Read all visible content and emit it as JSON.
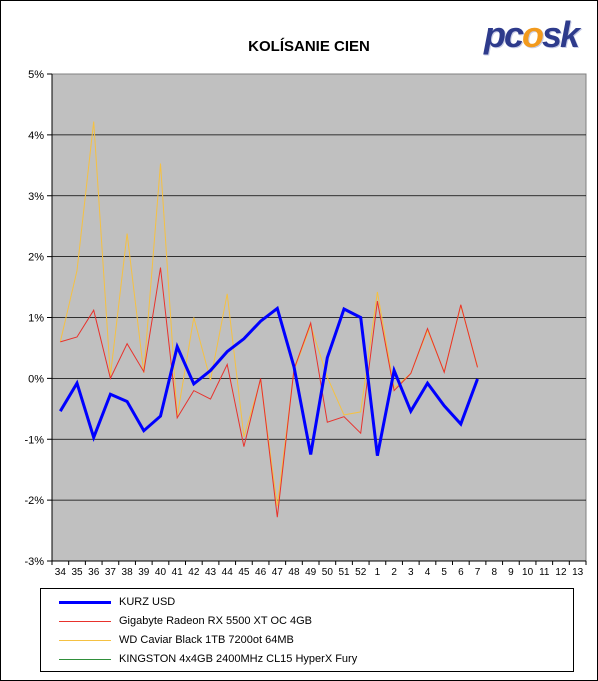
{
  "logo": {
    "text_left": "pc",
    "text_mid": "o",
    "text_right": "sk"
  },
  "chart_data": {
    "type": "line",
    "title": "KOLÍSANIE CIEN",
    "xlabel": "",
    "ylabel": "",
    "categories": [
      "34",
      "35",
      "36",
      "37",
      "38",
      "39",
      "40",
      "41",
      "42",
      "43",
      "44",
      "45",
      "46",
      "47",
      "48",
      "49",
      "50",
      "51",
      "52",
      "1",
      "2",
      "3",
      "4",
      "5",
      "6",
      "7",
      "8",
      "9",
      "10",
      "11",
      "12",
      "13"
    ],
    "y_ticks": [
      "5%",
      "4%",
      "3%",
      "2%",
      "1%",
      "0%",
      "-1%",
      "-2%",
      "-3%"
    ],
    "ylim": [
      -3,
      5
    ],
    "grid": true,
    "legend_position": "bottom",
    "series": [
      {
        "name": "KURZ USD",
        "color": "#0000ff",
        "width": 3,
        "values": [
          -0.54,
          -0.08,
          -0.97,
          -0.26,
          -0.38,
          -0.86,
          -0.62,
          0.52,
          -0.09,
          0.13,
          0.44,
          0.65,
          0.94,
          1.15,
          0.19,
          -1.25,
          0.34,
          1.14,
          1.0,
          -1.27,
          0.13,
          -0.54,
          -0.08,
          -0.45,
          -0.75,
          -0.01,
          null,
          null,
          null,
          null,
          null,
          null
        ]
      },
      {
        "name": "Gigabyte Radeon RX 5500 XT OC 4GB",
        "color": "#e8322c",
        "width": 1,
        "values": [
          0.6,
          0.68,
          1.12,
          0.0,
          0.57,
          0.11,
          1.82,
          -0.65,
          -0.2,
          -0.34,
          0.23,
          -1.12,
          0.0,
          -2.28,
          0.15,
          0.91,
          -0.72,
          -0.63,
          -0.9,
          1.27,
          -0.2,
          0.08,
          0.82,
          0.1,
          1.21,
          0.18,
          null,
          null,
          null,
          null,
          null,
          null
        ]
      },
      {
        "name": "WD Caviar Black 1TB 7200ot 64MB",
        "color": "#f5c142",
        "width": 1,
        "values": [
          0.6,
          1.77,
          4.22,
          0.04,
          2.38,
          0.09,
          3.53,
          -0.63,
          1.0,
          -0.03,
          1.39,
          -0.96,
          -0.03,
          -2.1,
          0.13,
          0.87,
          0.02,
          -0.6,
          -0.55,
          1.42,
          -0.16,
          0.08,
          0.79,
          0.11,
          1.19,
          0.2,
          null,
          null,
          null,
          null,
          null,
          null
        ]
      },
      {
        "name": "KINGSTON 4x4GB 2400MHz CL15 HyperX Fury",
        "color": "#2f8f3a",
        "width": 1,
        "values": [
          null,
          null,
          null,
          null,
          null,
          null,
          null,
          null,
          null,
          null,
          null,
          null,
          null,
          null,
          null,
          null,
          null,
          null,
          null,
          null,
          null,
          null,
          null,
          null,
          null,
          null,
          null,
          null,
          null,
          null,
          null,
          null
        ]
      }
    ]
  }
}
